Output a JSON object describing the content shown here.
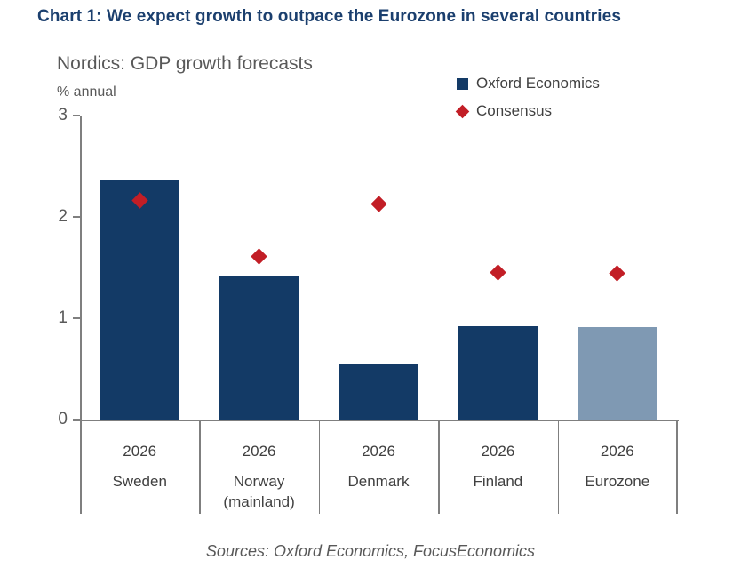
{
  "header": {
    "title": "Chart 1: We expect growth to outpace the Eurozone in several countries"
  },
  "chart": {
    "subtitle": "Nordics: GDP growth forecasts",
    "unit_label": "% annual"
  },
  "legend": {
    "oxford": {
      "label": "Oxford Economics",
      "marker": "square-icon",
      "color": "#133a66"
    },
    "consensus": {
      "label": "Consensus",
      "marker": "diamond-icon",
      "color": "#c21e26"
    }
  },
  "chart_data": {
    "type": "bar",
    "title": "Nordics: GDP growth forecasts",
    "ylabel": "% annual",
    "xlabel": "",
    "ylim": [
      0,
      3
    ],
    "yticks": [
      0,
      1,
      2,
      3
    ],
    "grid": false,
    "legend_position": "top-right",
    "categories": [
      {
        "id": "sweden",
        "year": "2026",
        "name_lines": [
          "Sweden"
        ]
      },
      {
        "id": "norway-mainland",
        "year": "2026",
        "name_lines": [
          "Norway",
          "(mainland)"
        ]
      },
      {
        "id": "denmark",
        "year": "2026",
        "name_lines": [
          "Denmark"
        ]
      },
      {
        "id": "finland",
        "year": "2026",
        "name_lines": [
          "Finland"
        ]
      },
      {
        "id": "eurozone",
        "year": "2026",
        "name_lines": [
          "Eurozone"
        ]
      }
    ],
    "series": [
      {
        "name": "Oxford Economics",
        "type": "bar",
        "values": [
          2.36,
          1.42,
          0.55,
          0.92,
          0.91
        ],
        "bar_colors": [
          "#133a66",
          "#133a66",
          "#133a66",
          "#133a66",
          "#7f99b3"
        ]
      },
      {
        "name": "Consensus",
        "type": "scatter",
        "marker": "diamond",
        "values": [
          2.16,
          1.61,
          2.13,
          1.45,
          1.44
        ],
        "color": "#c21e26"
      }
    ],
    "colors": {
      "bar_primary": "#133a66",
      "bar_highlight": "#7f99b3",
      "marker": "#c21e26",
      "axis": "#7f7f7f",
      "tick_text": "#595959",
      "category_text": "#404040",
      "header_text": "#1b3f6e"
    }
  },
  "footer": {
    "sources": "Sources: Oxford Economics, FocusEconomics"
  }
}
